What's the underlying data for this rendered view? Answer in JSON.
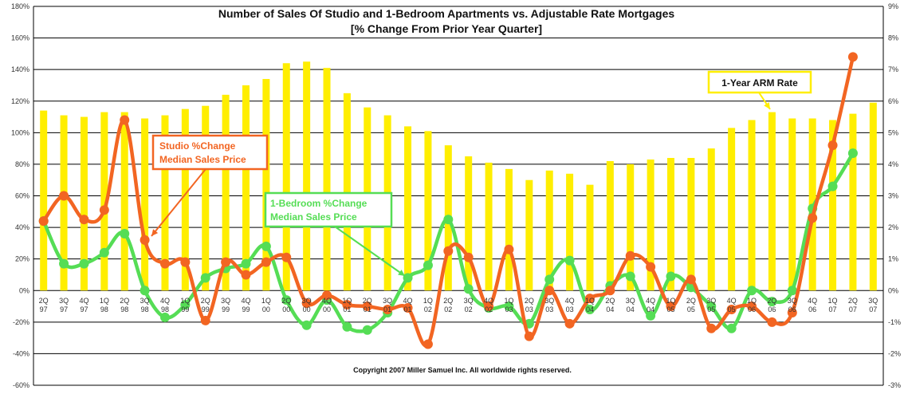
{
  "chart_data": {
    "type": "bar",
    "title": "Number of Sales Of Studio and 1-Bedroom Apartments vs. Adjustable Rate Mortgages",
    "subtitle": "[% Change From Prior Year Quarter]",
    "footnote": "Copyright 2007 Miller Samuel Inc.  All worldwide rights reserved.",
    "categories": [
      [
        "2Q",
        "97"
      ],
      [
        "3Q",
        "97"
      ],
      [
        "4Q",
        "97"
      ],
      [
        "1Q",
        "98"
      ],
      [
        "2Q",
        "98"
      ],
      [
        "3Q",
        "98"
      ],
      [
        "4Q",
        "98"
      ],
      [
        "1Q",
        "99"
      ],
      [
        "2Q",
        "99"
      ],
      [
        "3Q",
        "99"
      ],
      [
        "4Q",
        "99"
      ],
      [
        "1Q",
        "00"
      ],
      [
        "2Q",
        "00"
      ],
      [
        "3Q",
        "00"
      ],
      [
        "4Q",
        "00"
      ],
      [
        "1Q",
        "01"
      ],
      [
        "2Q",
        "01"
      ],
      [
        "3Q",
        "01"
      ],
      [
        "4Q",
        "01"
      ],
      [
        "1Q",
        "02"
      ],
      [
        "2Q",
        "02"
      ],
      [
        "3Q",
        "02"
      ],
      [
        "4Q",
        "02"
      ],
      [
        "1Q",
        "03"
      ],
      [
        "2Q",
        "03"
      ],
      [
        "3Q",
        "03"
      ],
      [
        "4Q",
        "03"
      ],
      [
        "1Q",
        "04"
      ],
      [
        "2Q",
        "04"
      ],
      [
        "3Q",
        "04"
      ],
      [
        "4Q",
        "04"
      ],
      [
        "1Q",
        "05"
      ],
      [
        "2Q",
        "05"
      ],
      [
        "3Q",
        "05"
      ],
      [
        "4Q",
        "05"
      ],
      [
        "1Q",
        "06"
      ],
      [
        "2Q",
        "06"
      ],
      [
        "3Q",
        "06"
      ],
      [
        "4Q",
        "06"
      ],
      [
        "1Q",
        "07"
      ],
      [
        "2Q",
        "07"
      ],
      [
        "3Q",
        "07"
      ]
    ],
    "left_axis": {
      "ylim": [
        -60,
        180
      ],
      "step": 20,
      "tick_labels": [
        "-60%",
        "-40%",
        "-20%",
        "0%",
        "20%",
        "40%",
        "60%",
        "80%",
        "100%",
        "120%",
        "140%",
        "160%",
        "180%"
      ]
    },
    "right_axis": {
      "ylim": [
        -3,
        9
      ],
      "step": 1,
      "tick_labels": [
        "-3%",
        "-2%",
        "-1%",
        "0%",
        "1%",
        "2%",
        "3%",
        "4%",
        "5%",
        "6%",
        "7%",
        "8%",
        "9%"
      ]
    },
    "grid": true,
    "series": [
      {
        "name": "1-Year ARM Rate",
        "kind": "bar",
        "axis": "right",
        "color": "#ffee00",
        "values": [
          5.7,
          5.55,
          5.5,
          5.65,
          5.65,
          5.45,
          5.55,
          5.75,
          5.85,
          6.2,
          6.5,
          6.7,
          7.2,
          7.25,
          7.05,
          6.25,
          5.8,
          5.55,
          5.2,
          5.05,
          4.6,
          4.25,
          4.05,
          3.85,
          3.5,
          3.8,
          3.7,
          3.35,
          4.1,
          4.0,
          4.15,
          4.2,
          4.2,
          4.5,
          5.15,
          5.4,
          5.65,
          5.45,
          5.45,
          5.4,
          5.6,
          5.95
        ]
      },
      {
        "name": "Studio % Change Median Sales Price",
        "label_lines": [
          "Studio %Change",
          "Median Sales Price"
        ],
        "kind": "line",
        "axis": "left",
        "color": "#f26522",
        "values": [
          44,
          60,
          45,
          51,
          108,
          32,
          17,
          18,
          -19,
          18,
          10,
          18,
          21,
          -8,
          -3,
          -9,
          -10,
          -12,
          -11,
          -34,
          25,
          21,
          -10,
          26,
          -29,
          0,
          -21,
          -5,
          0,
          22,
          15,
          -10,
          7,
          -24,
          -12,
          -10,
          -20,
          -14,
          46,
          92,
          148,
          null
        ]
      },
      {
        "name": "1-Bedroom % Change Median Sales Price",
        "label_lines": [
          "1-Bedroom %Change",
          "Median Sales Price"
        ],
        "kind": "line",
        "axis": "left",
        "color": "#55dd55",
        "values": [
          44,
          17,
          17,
          24,
          36,
          0,
          -17,
          -9,
          8,
          14,
          17,
          28,
          -6,
          -22,
          -6,
          -23,
          -25,
          -14,
          8,
          16,
          45,
          1,
          -11,
          -10,
          -21,
          7,
          19,
          -12,
          3,
          9,
          -16,
          9,
          2,
          -10,
          -24,
          0,
          -7,
          0,
          52,
          66,
          87,
          null
        ]
      }
    ],
    "annotations": [
      {
        "text": "1-Year ARM Rate",
        "border": "#ffee00",
        "text_color": "#111111"
      },
      {
        "text_lines": [
          "Studio %Change",
          "Median Sales Price"
        ],
        "border": "#f26522",
        "text_color": "#f26522"
      },
      {
        "text_lines": [
          "1-Bedroom %Change",
          "Median Sales Price"
        ],
        "border": "#55dd55",
        "text_color": "#55dd55"
      }
    ]
  }
}
